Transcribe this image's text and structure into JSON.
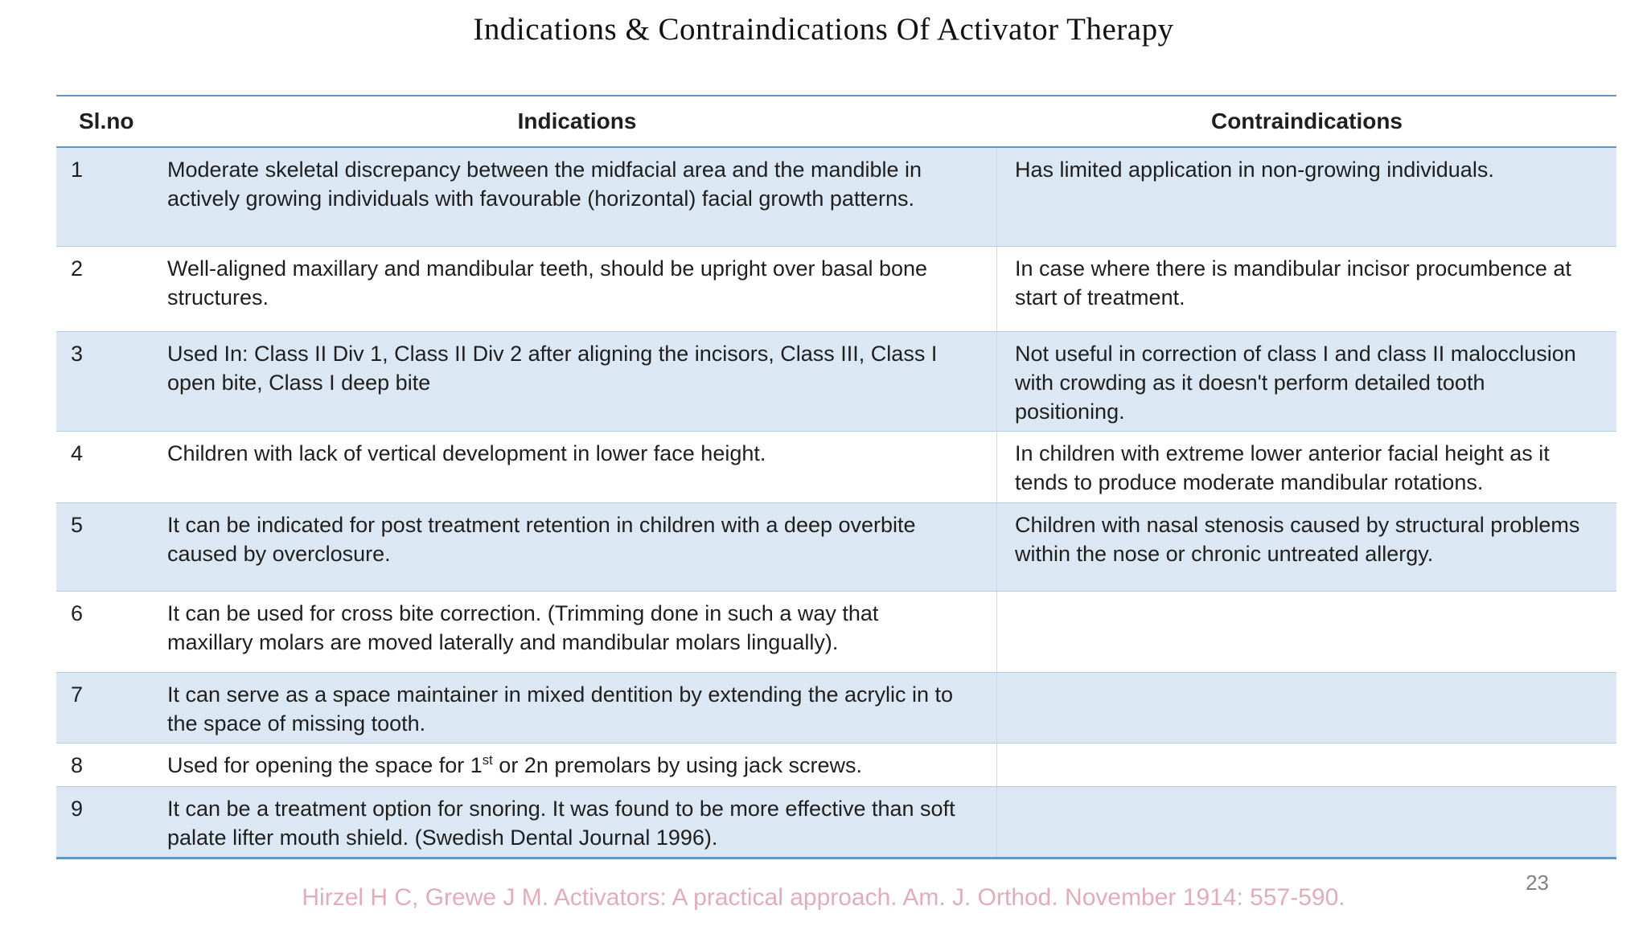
{
  "slide": {
    "title": "Indications & Contraindications Of Activator Therapy",
    "page_number": "23",
    "citation": "Hirzel H C, Grewe J M. Activators: A practical approach. Am. J. Orthod. November 1914: 557-590."
  },
  "table": {
    "headers": [
      "Sl.no",
      "Indications",
      "Contraindications"
    ],
    "rows": [
      {
        "no": "1",
        "indication": [
          {
            "t": "Moderate skeletal discrepancy between the midfacial area and the mandible in actively growing individuals with favourable (horizontal) facial growth patterns."
          }
        ],
        "contraindication": [
          {
            "t": "Has limited application in non-growing individuals."
          }
        ]
      },
      {
        "no": "2",
        "indication": [
          {
            "t": "Well-aligned maxillary and mandibular teeth, should be upright over basal bone structures."
          }
        ],
        "contraindication": [
          {
            "t": "In case where there is mandibular incisor procumbence at start of treatment."
          }
        ]
      },
      {
        "no": "3",
        "indication": [
          {
            "t": "Used In: Class II Div 1, Class II Div 2 after aligning the incisors, Class III, Class I open bite, Class I deep bite"
          }
        ],
        "contraindication": [
          {
            "t": "Not useful in correction of class I and class II malocclusion with crowding as it doesn't perform detailed tooth positioning."
          }
        ]
      },
      {
        "no": "4",
        "indication": [
          {
            "t": "Children with lack of vertical development in lower face height."
          }
        ],
        "contraindication": [
          {
            "t": "In children with extreme lower anterior facial height as it tends to produce moderate mandibular rotations."
          }
        ]
      },
      {
        "no": "5",
        "indication": [
          {
            "t": "It can be indicated for post treatment retention in children with a deep overbite caused by overclosure."
          }
        ],
        "contraindication": [
          {
            "t": "Children with nasal stenosis caused by structural problems within the nose or chronic untreated allergy."
          }
        ]
      },
      {
        "no": "6",
        "indication": [
          {
            "t": "It can be used for cross bite correction. (Trimming done in such a way  that maxillary molars are moved laterally and mandibular  molars lingually)."
          }
        ],
        "contraindication": []
      },
      {
        "no": "7",
        "indication": [
          {
            "t": "It can serve as a space maintainer in mixed dentition by extending the acrylic in to the space of missing tooth."
          }
        ],
        "contraindication": []
      },
      {
        "no": "8",
        "indication": [
          {
            "t": "Used for opening the space for 1"
          },
          {
            "t": "st",
            "sup": true
          },
          {
            "t": " or 2n premolars by using  jack screws."
          }
        ],
        "contraindication": []
      },
      {
        "no": "9",
        "indication": [
          {
            "t": "It can be a treatment option for snoring. It was found to be more effective than soft palate lifter mouth shield. (Swedish Dental Journal 1996)."
          }
        ],
        "contraindication": []
      }
    ]
  },
  "colors": {
    "accent": "#6494c6",
    "band": "#dbe7f3",
    "rowline": "#b7cce3",
    "colline": "#cadbeb",
    "citation": "#e2adb8",
    "page": "#808080"
  }
}
